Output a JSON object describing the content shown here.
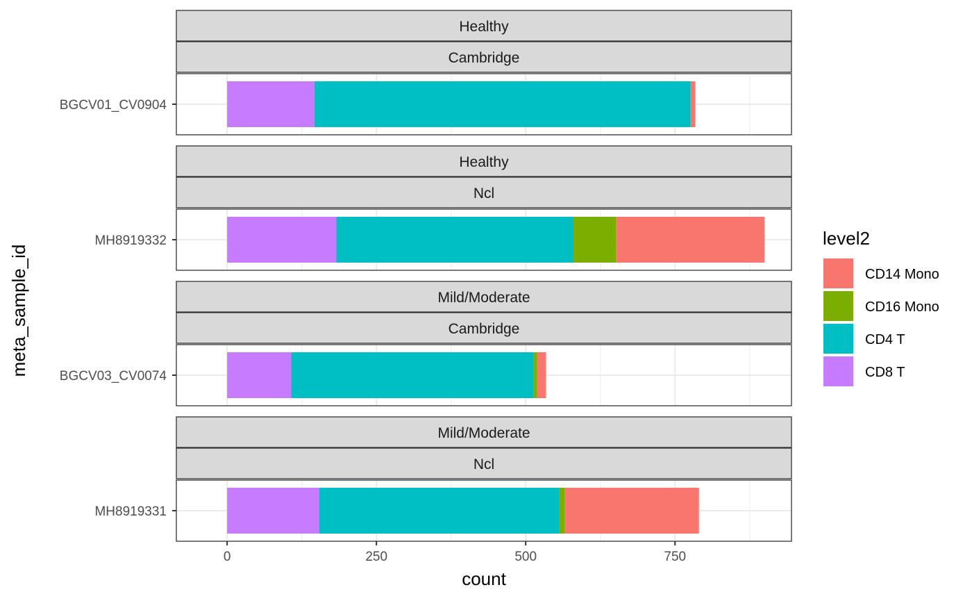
{
  "chart_data": {
    "type": "bar",
    "orientation": "horizontal",
    "stacked": true,
    "xlabel": "count",
    "ylabel": "meta_sample_id",
    "xlim": [
      -85,
      945
    ],
    "xticks": [
      0,
      250,
      500,
      750
    ],
    "grid": true,
    "legend": {
      "title": "level2",
      "position": "right",
      "entries": [
        {
          "name": "CD14 Mono",
          "color": "#F8766D"
        },
        {
          "name": "CD16 Mono",
          "color": "#7CAE00"
        },
        {
          "name": "CD4 T",
          "color": "#00BFC4"
        },
        {
          "name": "CD8 T",
          "color": "#C77CFF"
        }
      ]
    },
    "stack_order": [
      "CD8 T",
      "CD4 T",
      "CD16 Mono",
      "CD14 Mono"
    ],
    "panels": [
      {
        "strips": [
          "Healthy",
          "Cambridge"
        ],
        "sample": "BGCV01_CV0904",
        "values": {
          "CD8 T": 146,
          "CD4 T": 630,
          "CD16 Mono": 0,
          "CD14 Mono": 8
        }
      },
      {
        "strips": [
          "Healthy",
          "Ncl"
        ],
        "sample": "MH8919332",
        "values": {
          "CD8 T": 183,
          "CD4 T": 397,
          "CD16 Mono": 71,
          "CD14 Mono": 249
        }
      },
      {
        "strips": [
          "Mild/Moderate",
          "Cambridge"
        ],
        "sample": "BGCV03_CV0074",
        "values": {
          "CD8 T": 107,
          "CD4 T": 406,
          "CD16 Mono": 6,
          "CD14 Mono": 15
        }
      },
      {
        "strips": [
          "Mild/Moderate",
          "Ncl"
        ],
        "sample": "MH8919331",
        "values": {
          "CD8 T": 154,
          "CD4 T": 402,
          "CD16 Mono": 9,
          "CD14 Mono": 225
        }
      }
    ]
  }
}
